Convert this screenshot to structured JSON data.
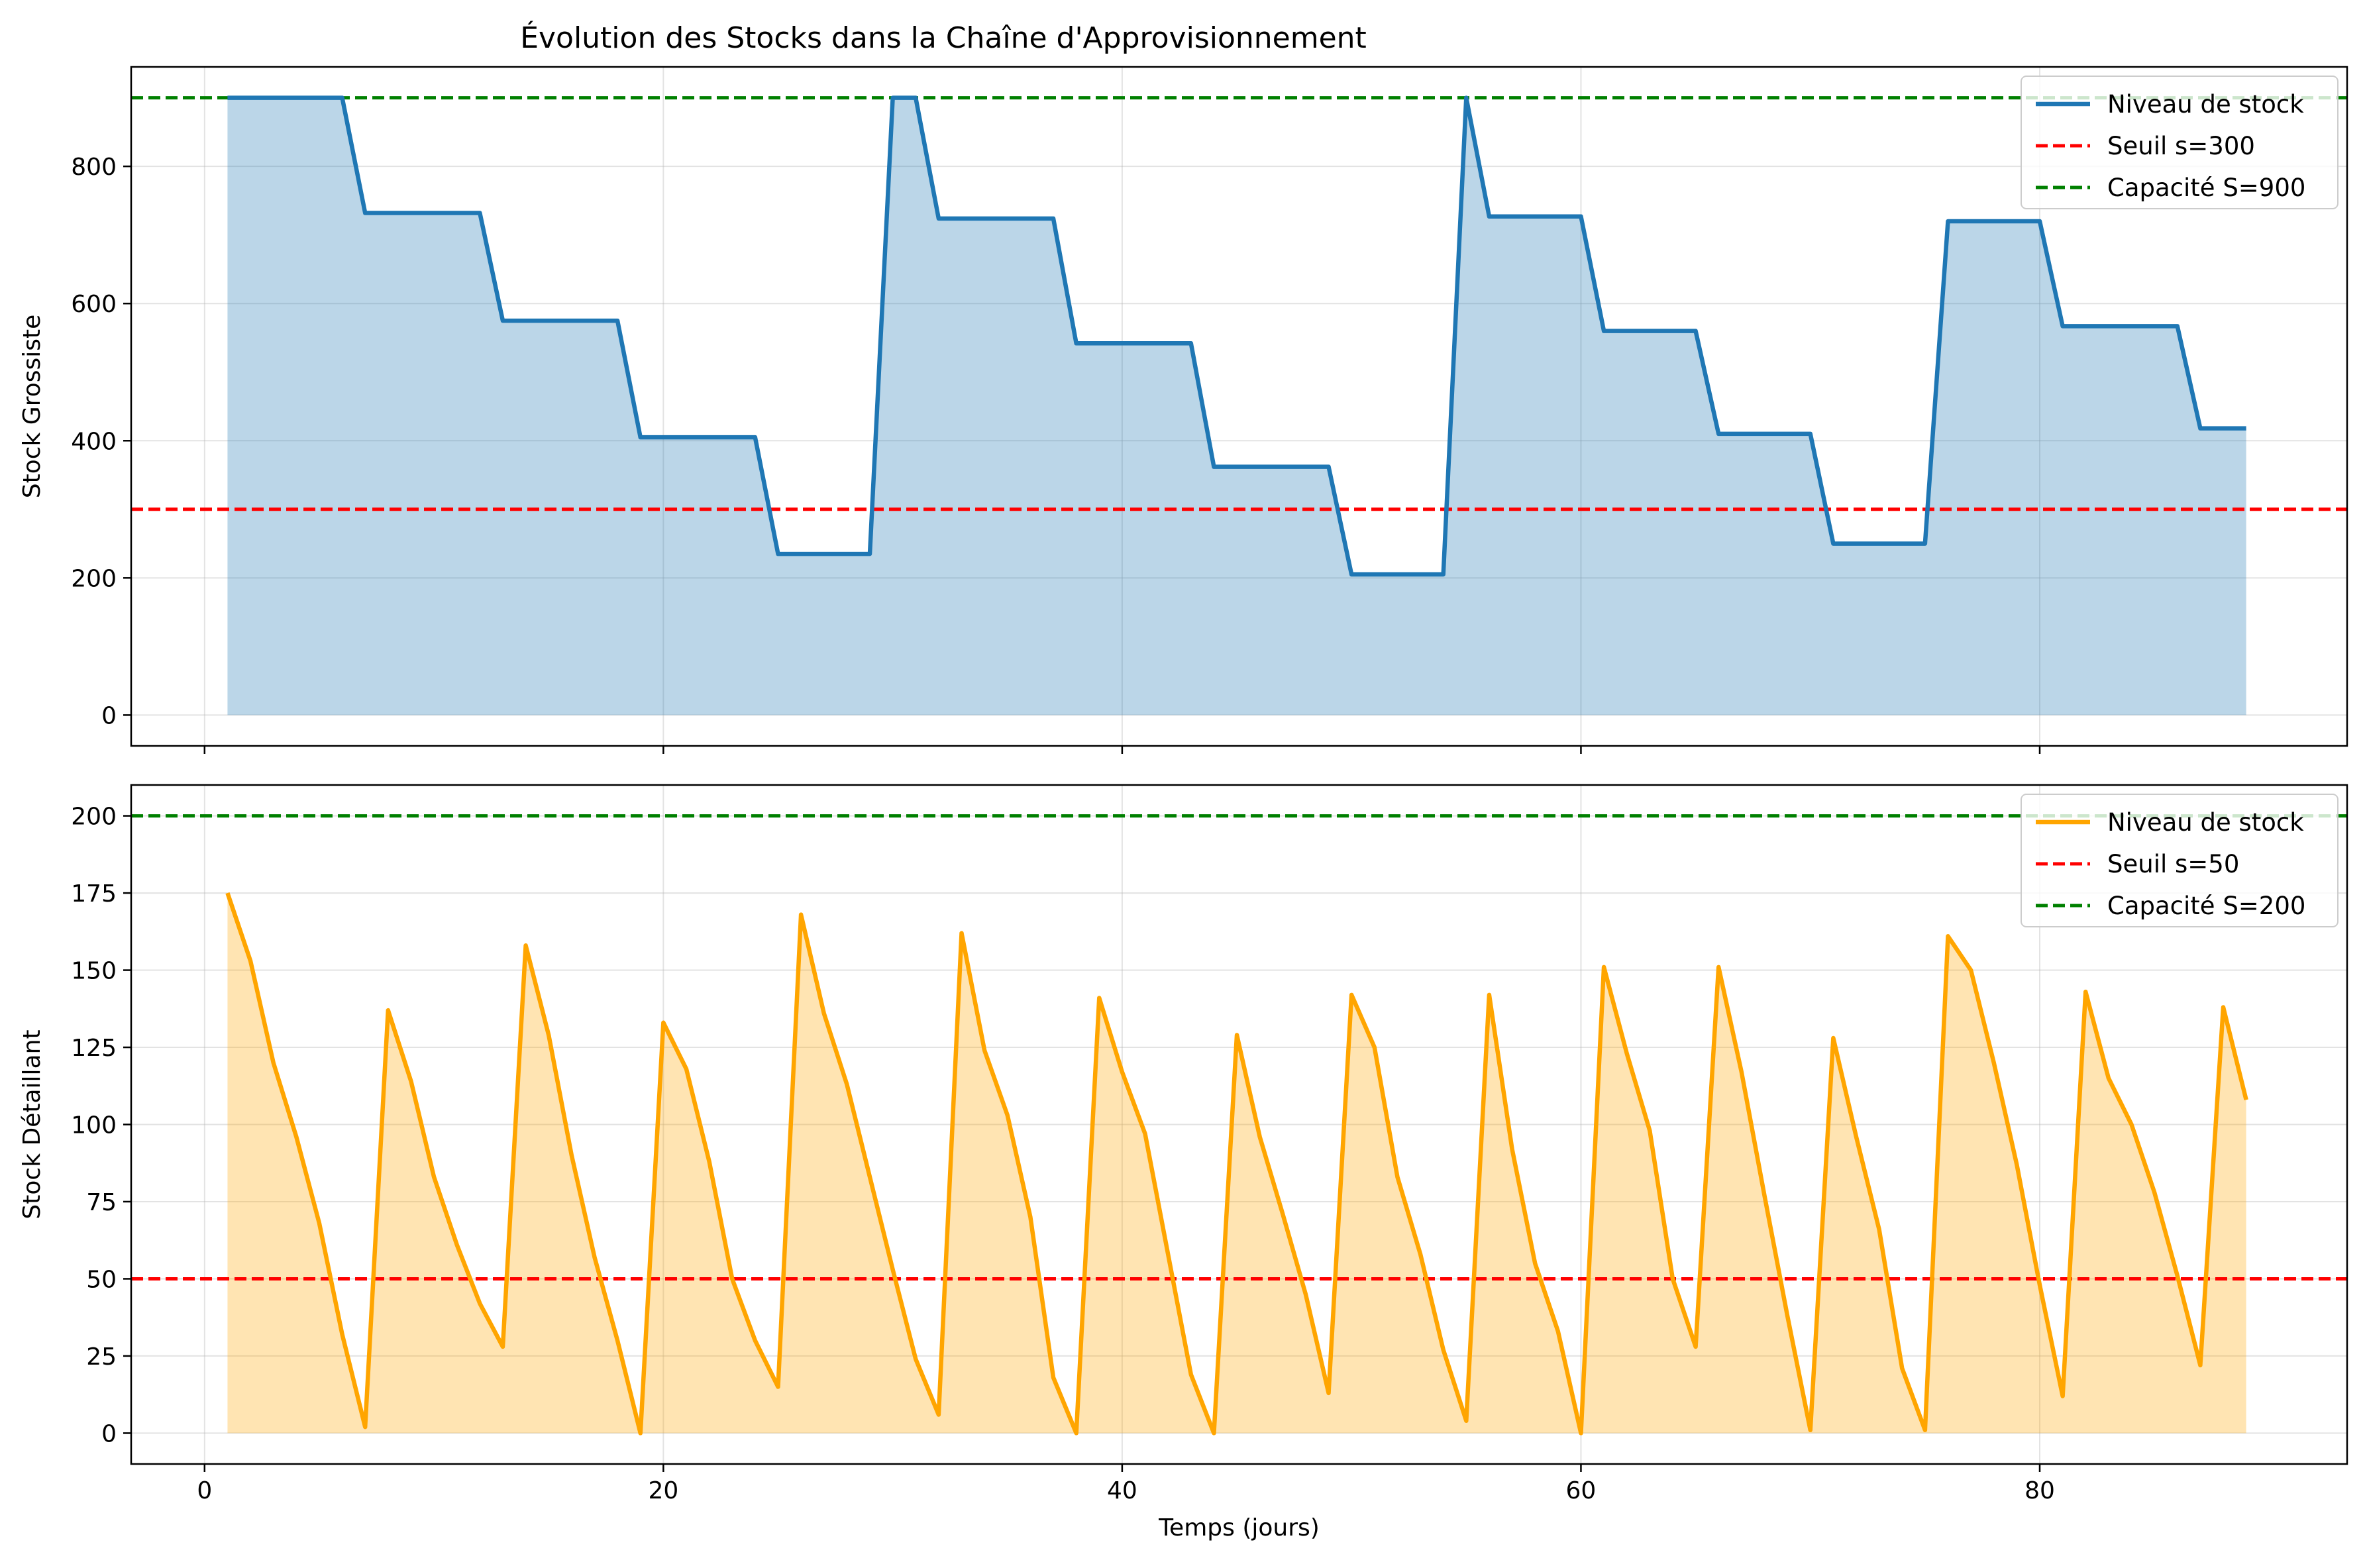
{
  "title": "Évolution des Stocks dans la Chaîne d'Approvisionnement",
  "chart_data": [
    {
      "type": "line",
      "ylabel": "Stock Grossiste",
      "xlabel": "",
      "xlim": [
        -3.2,
        93.4
      ],
      "ylim": [
        -45,
        945
      ],
      "xticks": [
        0,
        20,
        40,
        60,
        80
      ],
      "xtick_labels_visible": false,
      "yticks": [
        0,
        200,
        400,
        600,
        800
      ],
      "grid": true,
      "legend_position": "top-right",
      "series": [
        {
          "name": "Niveau de stock",
          "color": "#1f77b4",
          "fill_color": "#1f77b4",
          "x": [
            1,
            2,
            3,
            4,
            5,
            6,
            7,
            8,
            9,
            10,
            11,
            12,
            13,
            14,
            15,
            16,
            17,
            18,
            19,
            20,
            21,
            22,
            23,
            24,
            25,
            26,
            27,
            28,
            29,
            30,
            31,
            32,
            33,
            34,
            35,
            36,
            37,
            38,
            39,
            40,
            41,
            42,
            43,
            44,
            45,
            46,
            47,
            48,
            49,
            50,
            51,
            52,
            53,
            54,
            55,
            56,
            57,
            58,
            59,
            60,
            61,
            62,
            63,
            64,
            65,
            66,
            67,
            68,
            69,
            70,
            71,
            72,
            73,
            74,
            75,
            76,
            77,
            78,
            79,
            80,
            81,
            82,
            83,
            84,
            85,
            86,
            87,
            88,
            89
          ],
          "y": [
            900,
            900,
            900,
            900,
            900,
            900,
            732,
            732,
            732,
            732,
            732,
            732,
            575,
            575,
            575,
            575,
            575,
            575,
            405,
            405,
            405,
            405,
            405,
            405,
            235,
            235,
            235,
            235,
            235,
            900,
            900,
            724,
            724,
            724,
            724,
            724,
            724,
            542,
            542,
            542,
            542,
            542,
            542,
            362,
            362,
            362,
            362,
            362,
            362,
            205,
            205,
            205,
            205,
            205,
            900,
            727,
            727,
            727,
            727,
            727,
            560,
            560,
            560,
            560,
            560,
            410,
            410,
            410,
            410,
            410,
            250,
            250,
            250,
            250,
            250,
            720,
            720,
            720,
            720,
            720,
            567,
            567,
            567,
            567,
            567,
            567,
            418,
            418,
            418
          ]
        }
      ],
      "hlines": [
        {
          "name": "Seuil s=300",
          "y": 300,
          "color": "#ff0000",
          "style": "dashed"
        },
        {
          "name": "Capacité S=900",
          "y": 900,
          "color": "#008000",
          "style": "dashed"
        }
      ]
    },
    {
      "type": "line",
      "ylabel": "Stock Détaillant",
      "xlabel": "Temps (jours)",
      "xlim": [
        -3.2,
        93.4
      ],
      "ylim": [
        -10,
        210
      ],
      "xticks": [
        0,
        20,
        40,
        60,
        80
      ],
      "xtick_labels_visible": true,
      "yticks": [
        0,
        25,
        50,
        75,
        100,
        125,
        150,
        175,
        200
      ],
      "grid": true,
      "legend_position": "top-right",
      "series": [
        {
          "name": "Niveau de stock",
          "color": "#ffa500",
          "fill_color": "#ffa500",
          "x": [
            1,
            2,
            3,
            4,
            5,
            6,
            7,
            8,
            9,
            10,
            11,
            12,
            13,
            14,
            15,
            16,
            17,
            18,
            19,
            20,
            21,
            22,
            23,
            24,
            25,
            26,
            27,
            28,
            29,
            30,
            31,
            32,
            33,
            34,
            35,
            36,
            37,
            38,
            39,
            40,
            41,
            42,
            43,
            44,
            45,
            46,
            47,
            48,
            49,
            50,
            51,
            52,
            53,
            54,
            55,
            56,
            57,
            58,
            59,
            60,
            61,
            62,
            63,
            64,
            65,
            66,
            67,
            68,
            69,
            70,
            71,
            72,
            73,
            74,
            75,
            76,
            77,
            78,
            79,
            80,
            81,
            82,
            83,
            84,
            85,
            86,
            87,
            88,
            89
          ],
          "y": [
            175,
            153,
            120,
            96,
            68,
            32,
            2,
            137,
            114,
            83,
            61,
            42,
            28,
            158,
            129,
            90,
            57,
            30,
            0,
            133,
            118,
            88,
            50,
            30,
            15,
            168,
            136,
            113,
            83,
            53,
            24,
            6,
            162,
            124,
            103,
            70,
            18,
            0,
            141,
            117,
            97,
            58,
            19,
            0,
            129,
            96,
            71,
            45,
            13,
            142,
            125,
            83,
            58,
            27,
            4,
            142,
            92,
            55,
            33,
            0,
            151,
            123,
            98,
            50,
            28,
            151,
            117,
            77,
            38,
            1,
            128,
            96,
            66,
            21,
            1,
            161,
            150,
            120,
            87,
            48,
            12,
            143,
            115,
            100,
            78,
            51,
            22,
            138,
            108
          ]
        }
      ],
      "hlines": [
        {
          "name": "Seuil s=50",
          "y": 50,
          "color": "#ff0000",
          "style": "dashed"
        },
        {
          "name": "Capacité S=200",
          "y": 200,
          "color": "#008000",
          "style": "dashed"
        }
      ]
    }
  ]
}
